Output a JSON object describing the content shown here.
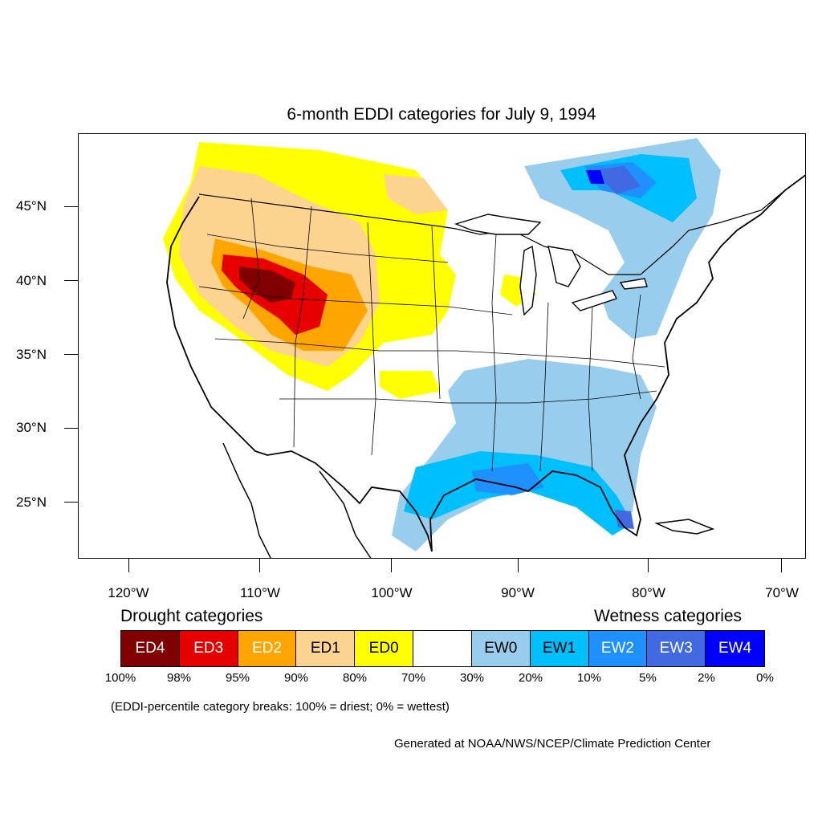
{
  "title": "6-month EDDI categories for July 9, 1994",
  "lat_axis": {
    "labels": [
      "45°N",
      "40°N",
      "35°N",
      "30°N",
      "25°N"
    ]
  },
  "lon_axis": {
    "labels": [
      "120°W",
      "110°W",
      "100°W",
      "90°W",
      "80°W",
      "70°W"
    ]
  },
  "legend": {
    "drought_heading": "Drought categories",
    "wetness_heading": "Wetness categories",
    "categories": [
      {
        "label": "ED4",
        "color": "#800000",
        "text_color": "#ffffff"
      },
      {
        "label": "ED3",
        "color": "#e60000",
        "text_color": "#ffffff"
      },
      {
        "label": "ED2",
        "color": "#ffa500",
        "text_color": "#ffffff"
      },
      {
        "label": "ED1",
        "color": "#fcd38f",
        "text_color": "#000000"
      },
      {
        "label": "ED0",
        "color": "#ffff00",
        "text_color": "#000000"
      },
      {
        "label": "",
        "color": "#ffffff",
        "text_color": "#000000"
      },
      {
        "label": "EW0",
        "color": "#99cdee",
        "text_color": "#000000"
      },
      {
        "label": "EW1",
        "color": "#00bfff",
        "text_color": "#000000"
      },
      {
        "label": "EW2",
        "color": "#1e90ff",
        "text_color": "#ffffff"
      },
      {
        "label": "EW3",
        "color": "#4169e1",
        "text_color": "#ffffff"
      },
      {
        "label": "EW4",
        "color": "#0000ff",
        "text_color": "#ffffff"
      }
    ],
    "breaks": [
      "100%",
      "98%",
      "95%",
      "90%",
      "80%",
      "70%",
      "30%",
      "20%",
      "10%",
      "5%",
      "2%",
      "0%"
    ]
  },
  "note": "(EDDI-percentile category breaks: 100% = driest; 0% = wettest)",
  "credit": "Generated at NOAA/NWS/NCEP/Climate Prediction Center"
}
